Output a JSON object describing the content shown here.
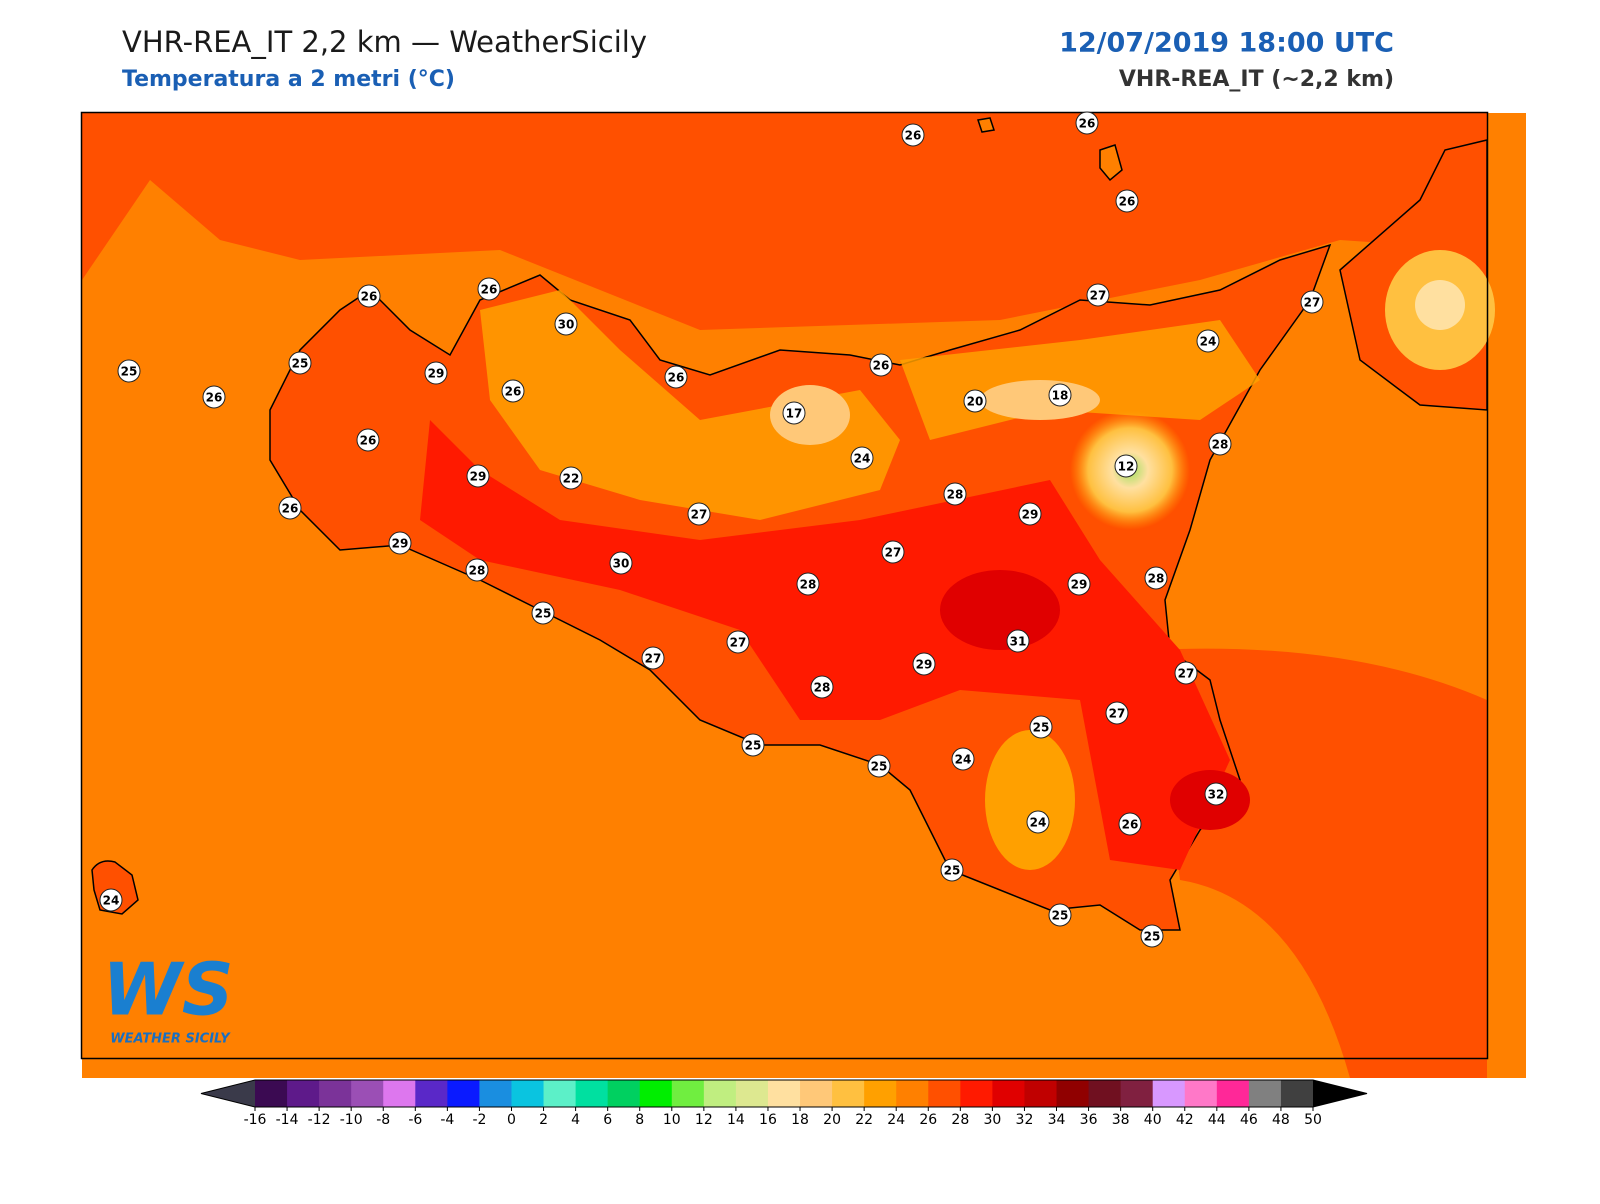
{
  "header": {
    "title": "VHR-REA_IT 2,2 km — WeatherSicily",
    "subtitle": "Temperatura a 2 metri (°C)",
    "datetime": "12/07/2019 18:00 UTC",
    "model": "VHR-REA_IT (~2,2 km)"
  },
  "stations": [
    26,
    26,
    26,
    26,
    26,
    30,
    25,
    25,
    26,
    29,
    26,
    26,
    26,
    27,
    27,
    24,
    17,
    20,
    18,
    26,
    29,
    22,
    24,
    12,
    28,
    26,
    29,
    27,
    28,
    29,
    27,
    30,
    28,
    28,
    29,
    28,
    25,
    27,
    31,
    27,
    29,
    28,
    27,
    25,
    27,
    25,
    25,
    24,
    32,
    24,
    26,
    25,
    25,
    25,
    24
  ],
  "logo": {
    "mark": "WS",
    "name": "WEATHER SICILY"
  },
  "colorbar": {
    "ticks": [
      -16,
      -14,
      -12,
      -10,
      -8,
      -6,
      -4,
      -2,
      0,
      2,
      4,
      6,
      8,
      10,
      12,
      14,
      16,
      18,
      20,
      22,
      24,
      26,
      28,
      30,
      32,
      34,
      36,
      38,
      40,
      42,
      44,
      46,
      48,
      50
    ],
    "colors": [
      "#3b0a52",
      "#5e1a8a",
      "#7b3399",
      "#9b4fb5",
      "#dd77ee",
      "#5a28c8",
      "#0a1aff",
      "#1a8ee0",
      "#0ac4e0",
      "#5cf0c8",
      "#00e0a0",
      "#00d060",
      "#00ee00",
      "#70ee40",
      "#c0ee80",
      "#dde890",
      "#ffe0a0",
      "#ffc878",
      "#ffc040",
      "#ffa000",
      "#ff8000",
      "#ff5000",
      "#ff1a00",
      "#e00000",
      "#c00000",
      "#900000",
      "#701020",
      "#802040",
      "#d898ff",
      "#ff78c8",
      "#ff2898",
      "#808080",
      "#404040"
    ],
    "under_color": "#3a3a4a",
    "over_color": "#000000"
  }
}
